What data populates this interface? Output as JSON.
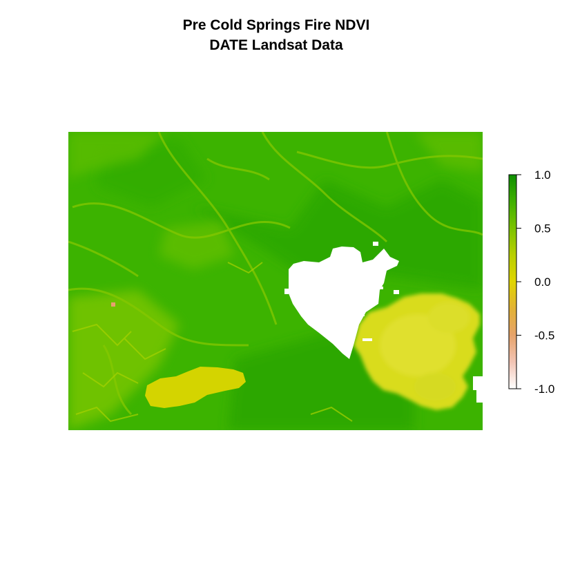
{
  "chart_data": {
    "type": "heatmap",
    "title_lines": [
      "Pre Cold Springs Fire NDVI",
      "DATE Landsat Data"
    ],
    "xlabel": "",
    "ylabel": "",
    "value_range": [
      -1.0,
      1.0
    ],
    "legend": {
      "placement": "right",
      "ticks": [
        {
          "value": 1.0,
          "label": "1.0"
        },
        {
          "value": 0.5,
          "label": "0.5"
        },
        {
          "value": 0.0,
          "label": "0.0"
        },
        {
          "value": -0.5,
          "label": "-0.5"
        },
        {
          "value": -1.0,
          "label": "-1.0"
        }
      ],
      "colors": [
        "#ffffff",
        "#f2c4b4",
        "#e6a36a",
        "#e2b235",
        "#e0d500",
        "#b8cf00",
        "#7cc300",
        "#3fb000",
        "#0e8f00"
      ]
    },
    "colors": {
      "background_vegetation": "#3db400",
      "dense_vegetation": "#2aa800",
      "sparse_vegetation": "#8ccc00",
      "lake": "#d4d400",
      "cloud": "#d8dc1e",
      "no_data": "#ffffff",
      "bare_spot": "#e8a070"
    },
    "grid": false
  }
}
